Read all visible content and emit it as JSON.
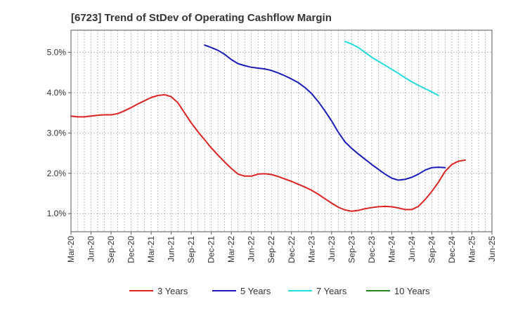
{
  "chart_data": {
    "type": "line",
    "title": "[6723]  Trend of StDev of Operating Cashflow Margin",
    "xlabel": "",
    "ylabel": "",
    "ylim": [
      0.55,
      5.55
    ],
    "y_ticks": [
      1.0,
      2.0,
      3.0,
      4.0,
      5.0
    ],
    "y_tick_labels": [
      "1.0%",
      "2.0%",
      "3.0%",
      "4.0%",
      "5.0%"
    ],
    "x_ticks": [
      "Mar-20",
      "Jun-20",
      "Sep-20",
      "Dec-20",
      "Mar-21",
      "Jun-21",
      "Sep-21",
      "Dec-21",
      "Mar-22",
      "Jun-22",
      "Sep-22",
      "Dec-22",
      "Mar-23",
      "Jun-23",
      "Sep-23",
      "Dec-23",
      "Mar-24",
      "Jun-24",
      "Sep-24",
      "Dec-24",
      "Mar-25",
      "Jun-25"
    ],
    "x_months_index": "months since Mar-20 (0 = Mar-20, 63 = Jun-25)",
    "xlim": [
      0,
      63
    ],
    "grid": true,
    "legend_position": "bottom",
    "series": [
      {
        "name": "3 Years",
        "color": "#dd2222",
        "x": [
          0,
          1,
          2,
          3,
          4,
          5,
          6,
          7,
          8,
          9,
          10,
          11,
          12,
          13,
          14,
          15,
          16,
          17,
          18,
          19,
          20,
          21,
          22,
          23,
          24,
          25,
          26,
          27,
          28,
          29,
          30,
          31,
          32,
          33,
          34,
          35,
          36,
          37,
          38,
          39,
          40,
          41,
          42,
          43,
          44,
          45,
          46,
          47,
          48,
          49,
          50,
          51,
          52,
          53,
          54,
          55,
          56,
          57,
          58,
          59,
          60,
          61,
          62,
          63
        ],
        "values": [
          3.42,
          3.4,
          3.4,
          3.42,
          3.44,
          3.45,
          3.45,
          3.48,
          3.55,
          3.63,
          3.72,
          3.8,
          3.88,
          3.93,
          3.95,
          3.9,
          3.75,
          3.5,
          3.25,
          3.03,
          2.83,
          2.63,
          2.45,
          2.28,
          2.12,
          1.98,
          1.93,
          1.93,
          1.98,
          1.99,
          1.97,
          1.92,
          1.86,
          1.8,
          1.73,
          1.66,
          1.58,
          1.48,
          1.37,
          1.26,
          1.16,
          1.09,
          1.06,
          1.08,
          1.12,
          1.15,
          1.17,
          1.18,
          1.17,
          1.14,
          1.1,
          1.1,
          1.18,
          1.35,
          1.55,
          1.78,
          2.05,
          2.22,
          2.3,
          2.33,
          null,
          null,
          null,
          null
        ]
      },
      {
        "name": "5 Years",
        "color": "#1a1ab8",
        "x": [
          0,
          1,
          2,
          3,
          4,
          5,
          6,
          7,
          8,
          9,
          10,
          11,
          12,
          13,
          14,
          15,
          16,
          17,
          18,
          19,
          20,
          21,
          22,
          23,
          24,
          25,
          26,
          27,
          28,
          29,
          30,
          31,
          32,
          33,
          34,
          35,
          36,
          37,
          38,
          39,
          40,
          41,
          42,
          43,
          44,
          45,
          46,
          47,
          48,
          49,
          50,
          51,
          52,
          53,
          54,
          55,
          56,
          57,
          58,
          59,
          60,
          61,
          62,
          63
        ],
        "values": [
          null,
          null,
          null,
          null,
          null,
          null,
          null,
          null,
          null,
          null,
          null,
          null,
          null,
          null,
          null,
          null,
          null,
          null,
          null,
          null,
          5.18,
          5.12,
          5.05,
          4.95,
          4.82,
          4.72,
          4.67,
          4.63,
          4.61,
          4.59,
          4.55,
          4.49,
          4.42,
          4.34,
          4.25,
          4.13,
          3.98,
          3.78,
          3.55,
          3.3,
          3.02,
          2.78,
          2.62,
          2.48,
          2.35,
          2.22,
          2.1,
          1.98,
          1.88,
          1.83,
          1.85,
          1.9,
          1.98,
          2.08,
          2.14,
          2.15,
          2.14,
          null,
          null,
          null,
          null,
          null,
          null,
          null
        ]
      },
      {
        "name": "7 Years",
        "color": "#22dddd",
        "x": [
          0,
          1,
          2,
          3,
          4,
          5,
          6,
          7,
          8,
          9,
          10,
          11,
          12,
          13,
          14,
          15,
          16,
          17,
          18,
          19,
          20,
          21,
          22,
          23,
          24,
          25,
          26,
          27,
          28,
          29,
          30,
          31,
          32,
          33,
          34,
          35,
          36,
          37,
          38,
          39,
          40,
          41,
          42,
          43,
          44,
          45,
          46,
          47,
          48,
          49,
          50,
          51,
          52,
          53,
          54,
          55,
          56,
          57,
          58,
          59,
          60,
          61,
          62,
          63
        ],
        "values": [
          null,
          null,
          null,
          null,
          null,
          null,
          null,
          null,
          null,
          null,
          null,
          null,
          null,
          null,
          null,
          null,
          null,
          null,
          null,
          null,
          null,
          null,
          null,
          null,
          null,
          null,
          null,
          null,
          null,
          null,
          null,
          null,
          null,
          null,
          null,
          null,
          null,
          null,
          null,
          null,
          null,
          5.27,
          5.21,
          5.12,
          5.0,
          4.88,
          4.78,
          4.68,
          4.58,
          4.48,
          4.37,
          4.27,
          4.18,
          4.1,
          4.02,
          3.93,
          null,
          null,
          null,
          null,
          null,
          null,
          null,
          null
        ]
      },
      {
        "name": "10 Years",
        "color": "#228822",
        "x": [],
        "values": []
      }
    ]
  }
}
